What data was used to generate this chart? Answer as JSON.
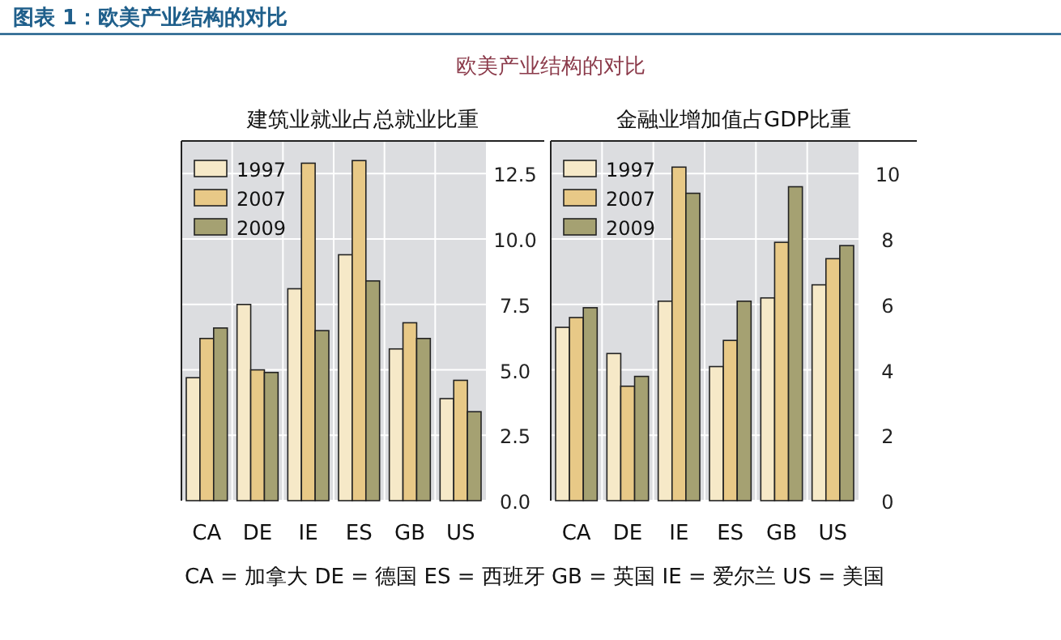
{
  "chart_data": [
    {
      "type": "bar",
      "title": "建筑业就业占总就业比重",
      "annotations": [
        "图表 1：欧美产业结构的对比",
        "欧美产业结构的对比",
        "CA = 加拿大  DE = 德国  ES = 西班牙  GB = 英国  IE = 爱尔兰  US = 美国"
      ],
      "categories": [
        "CA",
        "DE",
        "IE",
        "ES",
        "GB",
        "US"
      ],
      "ylim": [
        0,
        13.75
      ],
      "yticks": [
        {
          "value": 0,
          "label": "0.0"
        },
        {
          "value": 2.5,
          "label": "2.5"
        },
        {
          "value": 5,
          "label": "5.0"
        },
        {
          "value": 7.5,
          "label": "7.5"
        },
        {
          "value": 10,
          "label": "10.0"
        },
        {
          "value": 12.5,
          "label": "12.5"
        }
      ],
      "grid": true,
      "legend": "top left",
      "series": [
        {
          "name": "1997",
          "color": "#f6e9c8",
          "values": [
            4.7,
            7.5,
            8.1,
            9.4,
            5.8,
            3.9
          ]
        },
        {
          "name": "2007",
          "color": "#e8c987",
          "values": [
            6.2,
            5.0,
            12.9,
            13.0,
            6.8,
            4.6
          ]
        },
        {
          "name": "2009",
          "color": "#a5a172",
          "values": [
            6.6,
            4.9,
            6.5,
            8.4,
            6.2,
            3.4
          ]
        }
      ]
    },
    {
      "type": "bar",
      "title": "金融业增加值占GDP比重",
      "categories": [
        "CA",
        "DE",
        "IE",
        "ES",
        "GB",
        "US"
      ],
      "ylim": [
        0,
        11
      ],
      "yticks": [
        0,
        2,
        4,
        6,
        8,
        10
      ],
      "grid": true,
      "legend": "top left",
      "series": [
        {
          "name": "1997",
          "color": "#f6e9c8",
          "values": [
            5.3,
            4.5,
            6.1,
            4.1,
            6.2,
            6.6
          ]
        },
        {
          "name": "2007",
          "color": "#e8c987",
          "values": [
            5.6,
            3.5,
            10.2,
            4.9,
            7.9,
            7.4
          ]
        },
        {
          "name": "2009",
          "color": "#a5a172",
          "values": [
            5.9,
            3.8,
            9.4,
            6.1,
            9.6,
            7.8
          ]
        }
      ]
    }
  ]
}
